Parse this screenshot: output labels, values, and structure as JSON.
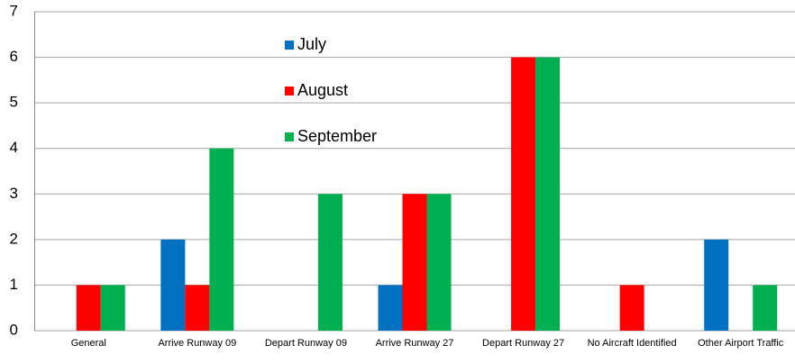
{
  "chart_data": {
    "type": "bar",
    "categories": [
      "General",
      "Arrive Runway 09",
      "Depart Runway 09",
      "Arrive Runway 27",
      "Depart Runway 27",
      "No Aircraft Identified",
      "Other Airport Traffic"
    ],
    "series": [
      {
        "name": "July",
        "color": "#0070c0",
        "values": [
          0,
          2,
          0,
          1,
          0,
          0,
          2
        ]
      },
      {
        "name": "August",
        "color": "#ff0000",
        "values": [
          1,
          1,
          0,
          3,
          6,
          1,
          0
        ]
      },
      {
        "name": "September",
        "color": "#00b050",
        "values": [
          1,
          4,
          3,
          3,
          6,
          0,
          1
        ]
      }
    ],
    "ylim": [
      0,
      7
    ],
    "yticks": [
      0,
      1,
      2,
      3,
      4,
      5,
      6,
      7
    ],
    "grid": true,
    "legend": "top"
  }
}
